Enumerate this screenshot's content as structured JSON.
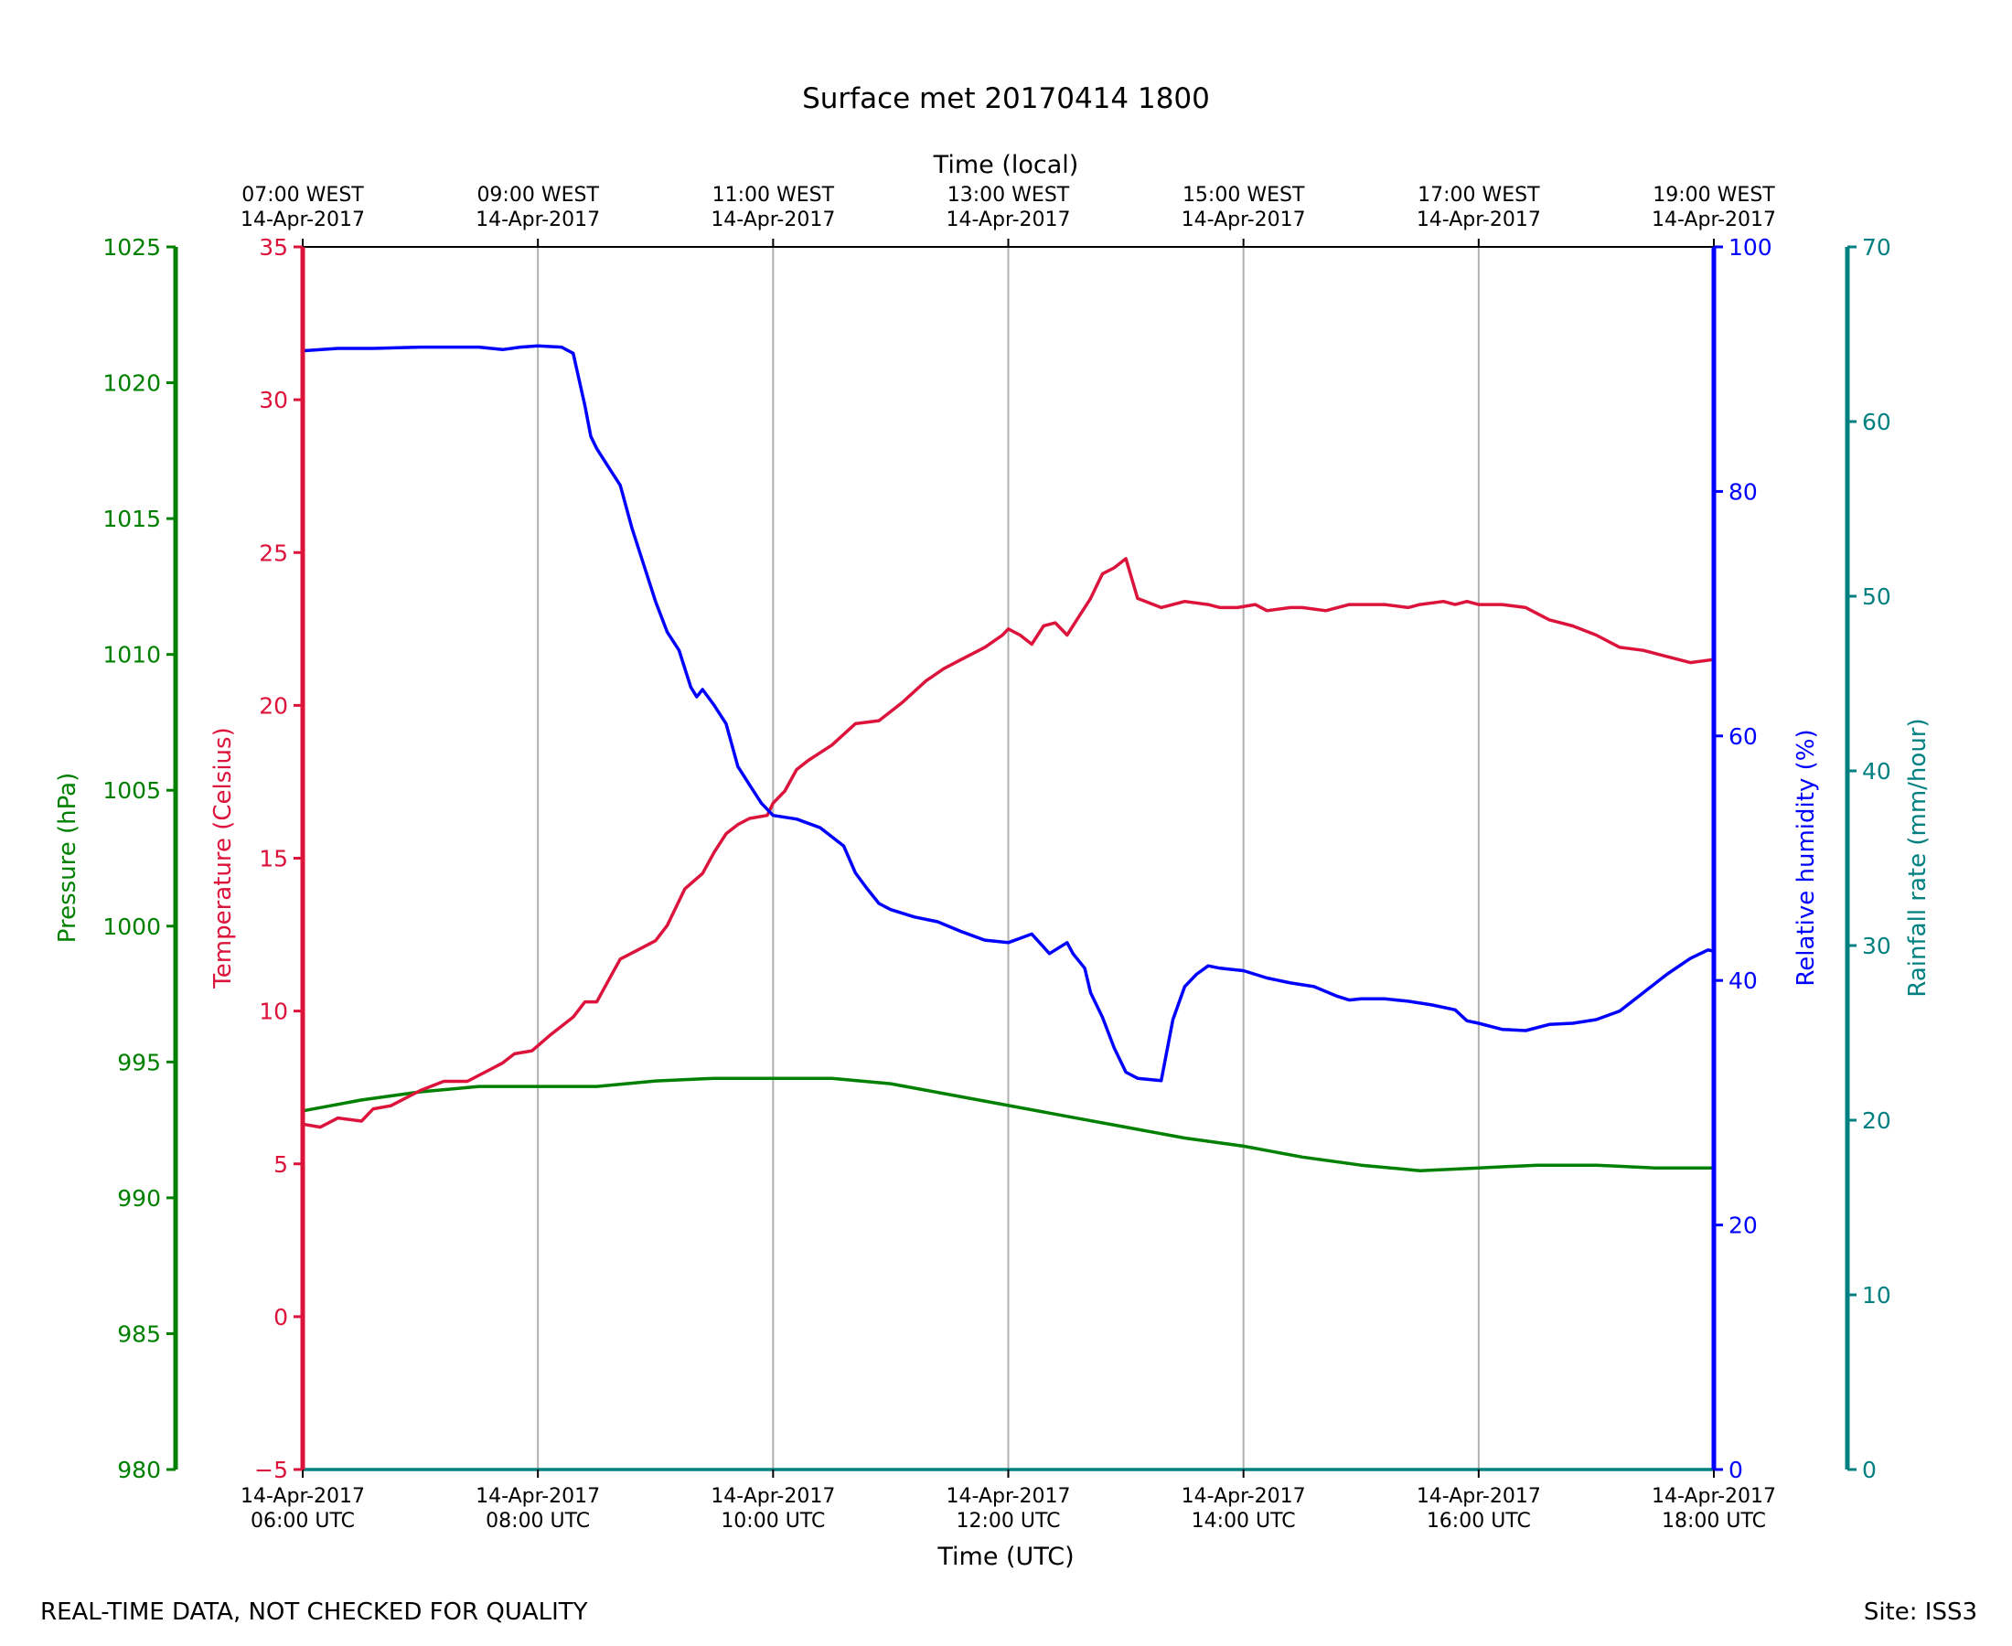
{
  "chart_data": {
    "type": "line",
    "title": "Surface met 20170414 1800",
    "xlabel": "Time (UTC)",
    "x2label": "Time (local)",
    "x_unit": "hours UTC",
    "xlim": [
      6,
      18
    ],
    "x_ticks": [
      {
        "x": 6,
        "utc": [
          "14-Apr-2017",
          "06:00 UTC"
        ],
        "local": [
          "07:00 WEST",
          "14-Apr-2017"
        ]
      },
      {
        "x": 8,
        "utc": [
          "14-Apr-2017",
          "08:00 UTC"
        ],
        "local": [
          "09:00 WEST",
          "14-Apr-2017"
        ]
      },
      {
        "x": 10,
        "utc": [
          "14-Apr-2017",
          "10:00 UTC"
        ],
        "local": [
          "11:00 WEST",
          "14-Apr-2017"
        ]
      },
      {
        "x": 12,
        "utc": [
          "14-Apr-2017",
          "12:00 UTC"
        ],
        "local": [
          "13:00 WEST",
          "14-Apr-2017"
        ]
      },
      {
        "x": 14,
        "utc": [
          "14-Apr-2017",
          "14:00 UTC"
        ],
        "local": [
          "15:00 WEST",
          "14-Apr-2017"
        ]
      },
      {
        "x": 16,
        "utc": [
          "14-Apr-2017",
          "16:00 UTC"
        ],
        "local": [
          "17:00 WEST",
          "14-Apr-2017"
        ]
      },
      {
        "x": 18,
        "utc": [
          "14-Apr-2017",
          "18:00 UTC"
        ],
        "local": [
          "19:00 WEST",
          "14-Apr-2017"
        ]
      }
    ],
    "grid": "vertical",
    "axes": {
      "pressure": {
        "label": "Pressure (hPa)",
        "ylim": [
          980,
          1025
        ],
        "ticks": [
          980,
          985,
          990,
          995,
          1000,
          1005,
          1010,
          1015,
          1020,
          1025
        ],
        "color": "#008000"
      },
      "temperature": {
        "label": "Temperature (Celsius)",
        "ylim": [
          -5,
          35
        ],
        "ticks": [
          -5,
          0,
          5,
          10,
          15,
          20,
          25,
          30,
          35
        ],
        "color": "#dc143c"
      },
      "humidity": {
        "label": "Relative humidity (%)",
        "ylim": [
          0,
          100
        ],
        "ticks": [
          0,
          20,
          40,
          60,
          80,
          100
        ],
        "color": "#0000ff"
      },
      "rainfall": {
        "label": "Rainfall rate (mm/hour)",
        "ylim": [
          0,
          70
        ],
        "ticks": [
          0,
          10,
          20,
          30,
          40,
          50,
          60,
          70
        ],
        "color": "#008080"
      }
    },
    "series": [
      {
        "name": "Temperature",
        "axis": "temperature",
        "color": "#dc143c",
        "x": [
          6.0,
          6.15,
          6.3,
          6.5,
          6.6,
          6.75,
          7.0,
          7.2,
          7.4,
          7.55,
          7.7,
          7.8,
          7.95,
          8.1,
          8.3,
          8.4,
          8.5,
          8.6,
          8.7,
          8.85,
          9.0,
          9.1,
          9.25,
          9.4,
          9.5,
          9.6,
          9.7,
          9.8,
          9.95,
          10.0,
          10.1,
          10.2,
          10.3,
          10.5,
          10.7,
          10.9,
          11.0,
          11.1,
          11.3,
          11.45,
          11.6,
          11.8,
          11.95,
          12.0,
          12.1,
          12.2,
          12.3,
          12.4,
          12.5,
          12.6,
          12.7,
          12.75,
          12.8,
          12.9,
          13.0,
          13.1,
          13.3,
          13.5,
          13.7,
          13.8,
          13.95,
          14.1,
          14.2,
          14.4,
          14.5,
          14.7,
          14.9,
          15.0,
          15.2,
          15.4,
          15.5,
          15.7,
          15.8,
          15.9,
          16.0,
          16.2,
          16.4,
          16.6,
          16.8,
          17.0,
          17.2,
          17.4,
          17.6,
          17.8,
          18.0
        ],
        "y": [
          6.3,
          6.2,
          6.5,
          6.4,
          6.8,
          6.9,
          7.4,
          7.7,
          7.7,
          8.0,
          8.3,
          8.6,
          8.7,
          9.2,
          9.8,
          10.3,
          10.3,
          11.0,
          11.7,
          12.0,
          12.3,
          12.8,
          14.0,
          14.5,
          15.2,
          15.8,
          16.1,
          16.3,
          16.4,
          16.8,
          17.2,
          17.9,
          18.2,
          18.7,
          19.4,
          19.5,
          19.8,
          20.1,
          20.8,
          21.2,
          21.5,
          21.9,
          22.3,
          22.5,
          22.3,
          22.0,
          22.6,
          22.7,
          22.3,
          22.9,
          23.5,
          23.9,
          24.3,
          24.5,
          24.8,
          23.5,
          23.2,
          23.4,
          23.3,
          23.2,
          23.2,
          23.3,
          23.1,
          23.2,
          23.2,
          23.1,
          23.3,
          23.3,
          23.3,
          23.2,
          23.3,
          23.4,
          23.3,
          23.4,
          23.3,
          23.3,
          23.2,
          22.8,
          22.6,
          22.3,
          21.9,
          21.8,
          21.6,
          21.4,
          21.5
        ]
      },
      {
        "name": "Relative humidity",
        "axis": "humidity",
        "color": "#0000ff",
        "x": [
          6.0,
          6.3,
          6.6,
          7.0,
          7.5,
          7.7,
          7.85,
          8.0,
          8.2,
          8.3,
          8.4,
          8.45,
          8.5,
          8.6,
          8.7,
          8.8,
          8.9,
          9.0,
          9.1,
          9.2,
          9.3,
          9.35,
          9.4,
          9.5,
          9.6,
          9.7,
          9.8,
          9.9,
          10.0,
          10.2,
          10.4,
          10.6,
          10.7,
          10.8,
          10.9,
          11.0,
          11.2,
          11.4,
          11.6,
          11.8,
          12.0,
          12.2,
          12.35,
          12.5,
          12.55,
          12.65,
          12.7,
          12.8,
          12.9,
          13.0,
          13.1,
          13.3,
          13.4,
          13.5,
          13.6,
          13.7,
          13.8,
          14.0,
          14.2,
          14.4,
          14.6,
          14.8,
          14.9,
          15.0,
          15.2,
          15.4,
          15.6,
          15.8,
          15.9,
          16.0,
          16.2,
          16.4,
          16.6,
          16.8,
          17.0,
          17.2,
          17.4,
          17.6,
          17.8,
          17.95,
          18.0
        ],
        "y": [
          91.5,
          91.7,
          91.7,
          91.8,
          91.8,
          91.6,
          91.8,
          91.9,
          91.8,
          91.3,
          87.0,
          84.5,
          83.5,
          82.0,
          80.5,
          77.0,
          74.0,
          71.0,
          68.5,
          67.0,
          64.0,
          63.2,
          63.8,
          62.5,
          61.0,
          57.5,
          56.0,
          54.5,
          53.5,
          53.2,
          52.5,
          51.0,
          48.8,
          47.5,
          46.3,
          45.8,
          45.2,
          44.8,
          44.0,
          43.3,
          43.1,
          43.8,
          42.2,
          43.1,
          42.2,
          41.0,
          39.0,
          37.0,
          34.5,
          32.5,
          32.0,
          31.8,
          36.8,
          39.5,
          40.5,
          41.2,
          41.0,
          40.8,
          40.2,
          39.8,
          39.5,
          38.7,
          38.4,
          38.5,
          38.5,
          38.3,
          38.0,
          37.6,
          36.7,
          36.5,
          36.0,
          35.9,
          36.4,
          36.5,
          36.8,
          37.5,
          39.0,
          40.5,
          41.8,
          42.5,
          42.4
        ]
      },
      {
        "name": "Pressure",
        "axis": "pressure",
        "color": "#008000",
        "x": [
          6.0,
          6.5,
          7.0,
          7.5,
          8.0,
          8.5,
          9.0,
          9.5,
          10.0,
          10.5,
          11.0,
          11.5,
          12.0,
          12.5,
          13.0,
          13.5,
          14.0,
          14.5,
          15.0,
          15.5,
          16.0,
          16.5,
          17.0,
          17.5,
          18.0
        ],
        "y": [
          993.2,
          993.6,
          993.9,
          994.1,
          994.1,
          994.1,
          994.3,
          994.4,
          994.4,
          994.4,
          994.2,
          993.8,
          993.4,
          993.0,
          992.6,
          992.2,
          991.9,
          991.5,
          991.2,
          991.0,
          991.1,
          991.2,
          991.2,
          991.1,
          991.1
        ]
      },
      {
        "name": "Rainfall rate",
        "axis": "rainfall",
        "color": "#008080",
        "x": [
          6.0,
          18.0
        ],
        "y": [
          0.0,
          0.0
        ]
      }
    ]
  },
  "footer": {
    "left": "REAL-TIME DATA, NOT CHECKED FOR QUALITY",
    "right": "Site: ISS3"
  }
}
